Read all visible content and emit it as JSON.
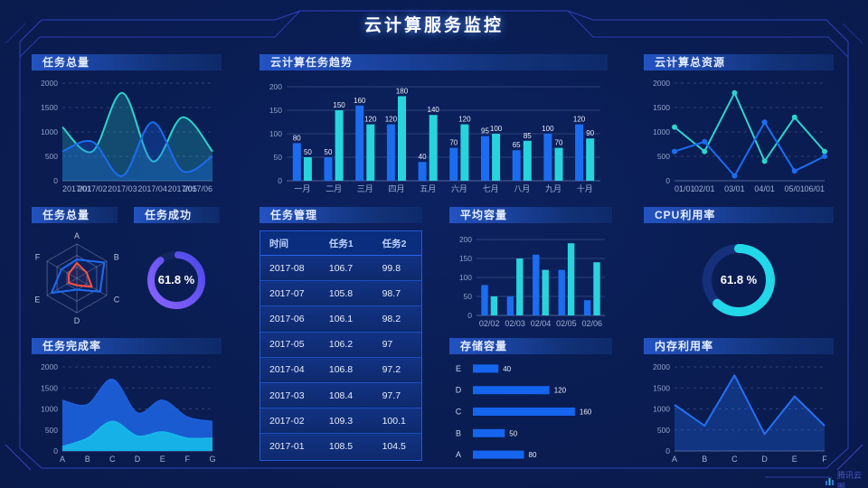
{
  "page": {
    "title": "云计算服务监控",
    "brand": "腾讯云图"
  },
  "colors": {
    "background": "#0a1d52",
    "frame_line": "#3040bf",
    "header_gradient_start": "#2353c2",
    "header_gradient_end": "#0e2a69",
    "series_blue": "#1b6df0",
    "series_cyan": "#27d4de",
    "line_cyan": "#2dd3cd",
    "donut_purple": "#8a63ff",
    "donut_cyan": "#22d8e8",
    "radar_red": "#ff5040",
    "hbar_blue": "#1565ef",
    "stacked_blue": "#1b5fd8",
    "stacked_cyan": "#16b7e8",
    "memory_blue": "#2470f4"
  },
  "chart_data": [
    {
      "id": "task-total-line",
      "type": "area",
      "title": "任务总量",
      "x": [
        "2017/01",
        "2017/02",
        "2017/03",
        "2017/04",
        "2017/05",
        "2017/06"
      ],
      "ylim": [
        0,
        2000
      ],
      "yticks": [
        0,
        500,
        1000,
        1500,
        2000
      ],
      "grid_dash": true,
      "smooth": true,
      "series": [
        {
          "name": "series-cyan",
          "color": "#2dd3cd",
          "values": [
            1100,
            600,
            1800,
            400,
            1300,
            600
          ],
          "fill": true,
          "fill_opacity": 0.25
        },
        {
          "name": "series-blue",
          "color": "#1b6df0",
          "values": [
            600,
            800,
            100,
            1200,
            200,
            500
          ],
          "fill": true,
          "fill_opacity": 0.28
        }
      ]
    },
    {
      "id": "cloud-task-trend",
      "type": "bar",
      "title": "云计算任务趋势",
      "categories": [
        "一月",
        "二月",
        "三月",
        "四月",
        "五月",
        "六月",
        "七月",
        "八月",
        "九月",
        "十月"
      ],
      "ylim": [
        0,
        200
      ],
      "yticks": [
        0,
        50,
        100,
        150,
        200
      ],
      "value_labels": true,
      "series": [
        {
          "name": "series-blue",
          "color": "#1b6df0",
          "values": [
            80,
            50,
            160,
            120,
            40,
            70,
            95,
            65,
            100,
            120
          ]
        },
        {
          "name": "series-cyan",
          "color": "#27d4de",
          "values": [
            50,
            150,
            120,
            180,
            140,
            120,
            100,
            85,
            70,
            90
          ]
        }
      ]
    },
    {
      "id": "cloud-total-resources",
      "type": "line",
      "title": "云计算总资源",
      "x": [
        "01/01",
        "02/01",
        "03/01",
        "04/01",
        "05/01",
        "06/01"
      ],
      "ylim": [
        0,
        2000
      ],
      "yticks": [
        0,
        500,
        1000,
        1500,
        2000
      ],
      "grid_dash": true,
      "markers": true,
      "series": [
        {
          "name": "series-cyan",
          "color": "#2dd3cd",
          "values": [
            1100,
            600,
            1800,
            400,
            1300,
            600
          ]
        },
        {
          "name": "series-blue",
          "color": "#1b6df0",
          "values": [
            600,
            800,
            100,
            1200,
            200,
            500
          ]
        }
      ]
    },
    {
      "id": "task-total-radar",
      "type": "radar",
      "title": "任务总量",
      "axes": [
        "A",
        "B",
        "C",
        "D",
        "E",
        "F"
      ],
      "max": 100,
      "series": [
        {
          "name": "radar-blue",
          "color": "#1f6cf0",
          "values": [
            55,
            92,
            78,
            33,
            85,
            52
          ]
        },
        {
          "name": "radar-red",
          "color": "#ff5040",
          "values": [
            45,
            33,
            50,
            20,
            27,
            27
          ]
        }
      ]
    },
    {
      "id": "task-success-donut",
      "type": "donut",
      "title": "任务成功",
      "value": 61.8,
      "value_label": "61.8 %",
      "arc_fraction": 0.88,
      "start_deg": -86,
      "colors": [
        "#8a63ff",
        "#4b49e8"
      ],
      "track": "#13265f",
      "radius": 28,
      "stroke": 8
    },
    {
      "id": "task-table",
      "type": "table",
      "title": "任务管理",
      "columns": [
        "时间",
        "任务1",
        "任务2"
      ],
      "rows": [
        [
          "2017-08",
          "106.7",
          "99.8"
        ],
        [
          "2017-07",
          "105.8",
          "98.7"
        ],
        [
          "2017-06",
          "106.1",
          "98.2"
        ],
        [
          "2017-05",
          "106.2",
          "97"
        ],
        [
          "2017-04",
          "106.8",
          "97.2"
        ],
        [
          "2017-03",
          "108.4",
          "97.7"
        ],
        [
          "2017-02",
          "109.3",
          "100.1"
        ],
        [
          "2017-01",
          "108.5",
          "104.5"
        ]
      ]
    },
    {
      "id": "avg-capacity",
      "type": "bar",
      "title": "平均容量",
      "categories": [
        "02/02",
        "02/03",
        "02/04",
        "02/05",
        "02/06"
      ],
      "ylim": [
        0,
        200
      ],
      "yticks": [
        0,
        50,
        100,
        150,
        200
      ],
      "value_labels": false,
      "series": [
        {
          "name": "series-blue",
          "color": "#1b6df0",
          "values": [
            80,
            50,
            160,
            120,
            40
          ]
        },
        {
          "name": "series-cyan",
          "color": "#27d4de",
          "values": [
            50,
            150,
            120,
            190,
            140
          ]
        }
      ]
    },
    {
      "id": "cpu-usage-donut",
      "type": "donut",
      "title": "CPU利用率",
      "value": 61.8,
      "value_label": "61.8 %",
      "arc_fraction": 0.618,
      "start_deg": -90,
      "colors": [
        "#22d8e8",
        "#22d8e8"
      ],
      "track": "#15317c",
      "radius": 35,
      "stroke": 10
    },
    {
      "id": "task-completion",
      "type": "stacked-area",
      "title": "任务完成率",
      "x": [
        "A",
        "B",
        "C",
        "D",
        "E",
        "F",
        "G"
      ],
      "ylim": [
        0,
        2000
      ],
      "yticks": [
        0,
        500,
        1000,
        1500,
        2000
      ],
      "grid_dash": true,
      "smooth": true,
      "series": [
        {
          "name": "stack-blue",
          "color": "#1b5fd8",
          "values": [
            1200,
            1100,
            1700,
            900,
            1200,
            800,
            700
          ],
          "fill": true,
          "fill_opacity": 0.95
        },
        {
          "name": "stack-cyan",
          "color": "#16b7e8",
          "values": [
            100,
            300,
            700,
            350,
            450,
            300,
            300
          ],
          "fill": true,
          "fill_opacity": 0.95
        }
      ]
    },
    {
      "id": "storage-capacity",
      "type": "hbar",
      "title": "存储容量",
      "categories": [
        "E",
        "D",
        "C",
        "B",
        "A"
      ],
      "values": [
        40,
        120,
        160,
        50,
        80
      ],
      "xmax": 170,
      "color": "#1565ef"
    },
    {
      "id": "memory-usage",
      "type": "line-area",
      "title": "内存利用率",
      "x": [
        "A",
        "B",
        "C",
        "D",
        "E",
        "F"
      ],
      "ylim": [
        0,
        2000
      ],
      "yticks": [
        0,
        500,
        1000,
        1500,
        2000
      ],
      "grid_dash": true,
      "series": [
        {
          "name": "memory-blue",
          "color": "#2470f4",
          "values": [
            1100,
            600,
            1800,
            400,
            1300,
            600
          ],
          "fill": true,
          "fill_opacity": 0.3
        }
      ]
    }
  ]
}
